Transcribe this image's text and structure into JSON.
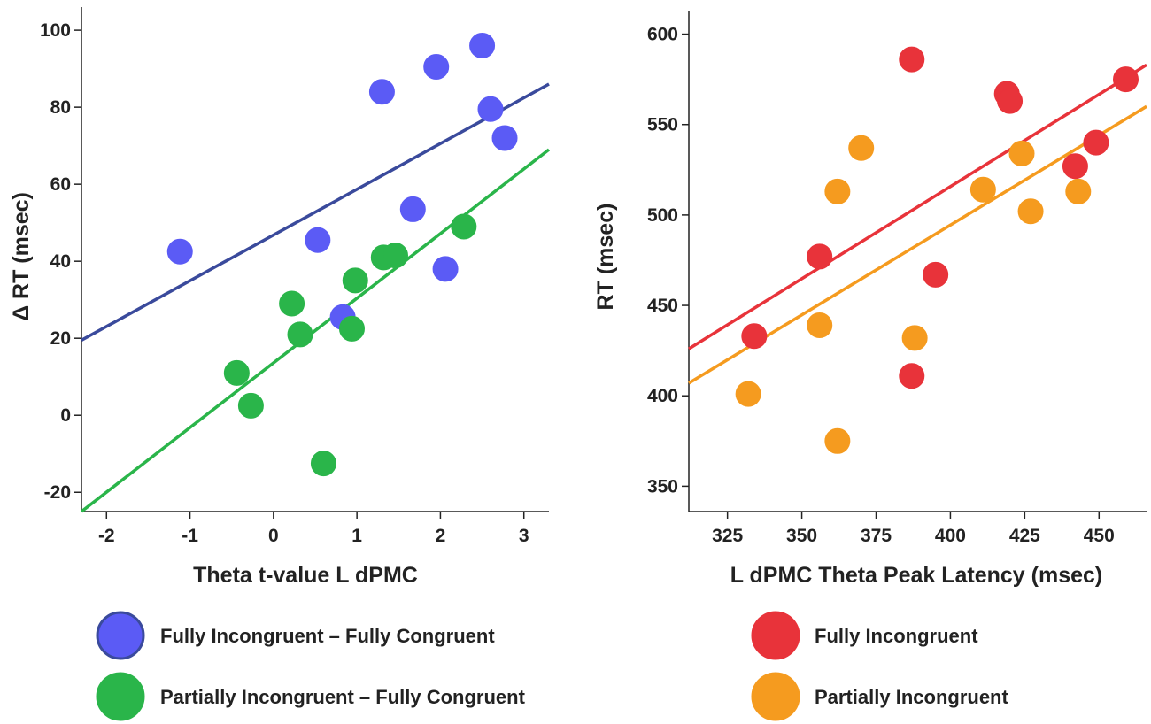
{
  "chart_data": [
    {
      "type": "scatter",
      "xlabel": "Theta t-value  L dPMC",
      "ylabel": "Δ RT (msec)",
      "xlim": [
        -2.3,
        3.3
      ],
      "ylim": [
        -25,
        106
      ],
      "xticks": [
        "-2",
        "-1",
        "0",
        "1",
        "2",
        "3"
      ],
      "xtick_values": [
        -2,
        -1,
        0,
        1,
        2,
        3
      ],
      "yticks": [
        "-20",
        "0",
        "20",
        "40",
        "60",
        "80",
        "100"
      ],
      "ytick_values": [
        -20,
        0,
        20,
        40,
        60,
        80,
        100
      ],
      "series": [
        {
          "name": "Fully Incongruent – Fully Congruent",
          "color": "#5b5bf5",
          "line_color": "#3a4a9c",
          "points": [
            [
              -1.12,
              42.5
            ],
            [
              0.53,
              45.5
            ],
            [
              1.3,
              84
            ],
            [
              1.95,
              90.5
            ],
            [
              2.5,
              96
            ],
            [
              2.6,
              79.5
            ],
            [
              2.77,
              72
            ],
            [
              1.67,
              53.5
            ],
            [
              2.06,
              38
            ],
            [
              0.83,
              25.5
            ]
          ],
          "fit": [
            [
              -2.3,
              19.5
            ],
            [
              3.3,
              86
            ]
          ]
        },
        {
          "name": "Partially Incongruent – Fully Congruent",
          "color": "#2ab54a",
          "line_color": "#2ab54a",
          "points": [
            [
              -0.44,
              11
            ],
            [
              -0.27,
              2.5
            ],
            [
              0.22,
              29
            ],
            [
              0.32,
              21
            ],
            [
              0.94,
              22.5
            ],
            [
              0.98,
              35
            ],
            [
              1.32,
              41
            ],
            [
              1.46,
              41.5
            ],
            [
              2.28,
              49
            ],
            [
              0.6,
              -12.5
            ]
          ],
          "fit": [
            [
              -2.3,
              -25
            ],
            [
              3.3,
              69
            ]
          ]
        }
      ]
    },
    {
      "type": "scatter",
      "xlabel": "L dPMC Theta Peak Latency (msec)",
      "ylabel": "RT (msec)",
      "xlim": [
        312,
        466
      ],
      "ylim": [
        336,
        613
      ],
      "xticks": [
        "325",
        "350",
        "375",
        "400",
        "425",
        "450"
      ],
      "xtick_values": [
        325,
        350,
        375,
        400,
        425,
        450
      ],
      "yticks": [
        "350",
        "400",
        "450",
        "500",
        "550",
        "600"
      ],
      "ytick_values": [
        350,
        400,
        450,
        500,
        550,
        600
      ],
      "series": [
        {
          "name": "Fully Incongruent",
          "color": "#e8333a",
          "line_color": "#e8333a",
          "points": [
            [
              334,
              433
            ],
            [
              356,
              477
            ],
            [
              387,
              586
            ],
            [
              395,
              467
            ],
            [
              387,
              411
            ],
            [
              419,
              567
            ],
            [
              420,
              563
            ],
            [
              442,
              527
            ],
            [
              449,
              540
            ],
            [
              459,
              575
            ]
          ],
          "fit": [
            [
              312,
              426
            ],
            [
              466,
              583
            ]
          ]
        },
        {
          "name": "Partially Incongruent",
          "color": "#f59b1f",
          "line_color": "#f59b1f",
          "points": [
            [
              332,
              401
            ],
            [
              356,
              439
            ],
            [
              362,
              375
            ],
            [
              362,
              513
            ],
            [
              370,
              537
            ],
            [
              388,
              432
            ],
            [
              411,
              514
            ],
            [
              424,
              534
            ],
            [
              427,
              502
            ],
            [
              443,
              513
            ]
          ],
          "fit": [
            [
              312,
              407
            ],
            [
              466,
              560
            ]
          ]
        }
      ]
    }
  ],
  "legend": {
    "items": [
      {
        "label": "Fully Incongruent – Fully Congruent",
        "color": "#5b5bf5",
        "stroke": "#3a4a9c"
      },
      {
        "label": "Partially Incongruent – Fully Congruent",
        "color": "#2ab54a",
        "stroke": "#2ab54a"
      },
      {
        "label": "Fully Incongruent",
        "color": "#e8333a",
        "stroke": "#e8333a"
      },
      {
        "label": "Partially Incongruent",
        "color": "#f59b1f",
        "stroke": "#f59b1f"
      }
    ]
  }
}
